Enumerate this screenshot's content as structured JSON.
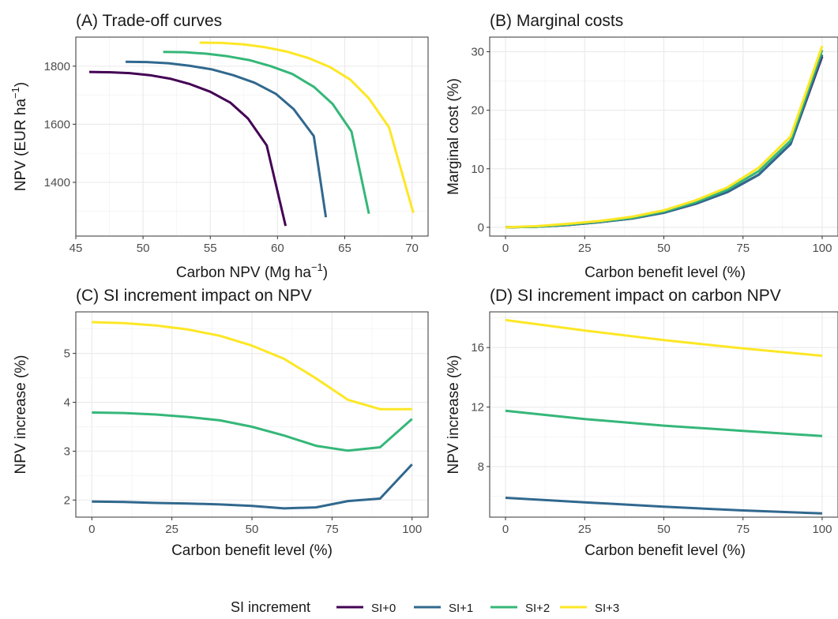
{
  "series_colors": {
    "SI+0": "#440154",
    "SI+1": "#31688e",
    "SI+2": "#35b779",
    "SI+3": "#fde725"
  },
  "legend": {
    "title": "SI increment",
    "entries": [
      "SI+0",
      "SI+1",
      "SI+2",
      "SI+3"
    ]
  },
  "chart_data": [
    {
      "id": "A",
      "type": "line",
      "title": "(A) Trade-off curves",
      "xlabel": "Carbon NPV (Mg ha",
      "xlabel_sup": "−1",
      "xlabel_end": ")",
      "ylabel": "NPV (EUR ha",
      "ylabel_sup": "−1",
      "ylabel_end": ")",
      "xlim": [
        45,
        71.2
      ],
      "ylim": [
        1215,
        1900
      ],
      "xticks": [
        45,
        50,
        55,
        60,
        65,
        70
      ],
      "yticks": [
        1400,
        1600,
        1800
      ],
      "grid": true,
      "series": [
        {
          "name": "SI+0",
          "points": [
            [
              46.0,
              1780
            ],
            [
              47.5,
              1779
            ],
            [
              49.0,
              1776
            ],
            [
              50.5,
              1769
            ],
            [
              52.0,
              1757
            ],
            [
              53.5,
              1738
            ],
            [
              55.0,
              1712
            ],
            [
              56.5,
              1674
            ],
            [
              57.8,
              1620
            ],
            [
              59.2,
              1527
            ],
            [
              60.6,
              1250
            ]
          ]
        },
        {
          "name": "SI+1",
          "points": [
            [
              48.7,
              1815
            ],
            [
              50.3,
              1814
            ],
            [
              51.9,
              1810
            ],
            [
              53.5,
              1801
            ],
            [
              55.1,
              1789
            ],
            [
              56.7,
              1769
            ],
            [
              58.3,
              1743
            ],
            [
              59.9,
              1704
            ],
            [
              61.2,
              1652
            ],
            [
              62.7,
              1559
            ],
            [
              63.6,
              1280
            ]
          ]
        },
        {
          "name": "SI+2",
          "points": [
            [
              51.5,
              1849
            ],
            [
              53.1,
              1848
            ],
            [
              54.7,
              1843
            ],
            [
              56.3,
              1834
            ],
            [
              57.9,
              1821
            ],
            [
              59.5,
              1800
            ],
            [
              61.1,
              1773
            ],
            [
              62.7,
              1729
            ],
            [
              64.1,
              1670
            ],
            [
              65.5,
              1575
            ],
            [
              66.8,
              1292
            ]
          ]
        },
        {
          "name": "SI+3",
          "points": [
            [
              54.2,
              1881
            ],
            [
              55.9,
              1880
            ],
            [
              57.5,
              1875
            ],
            [
              59.1,
              1865
            ],
            [
              60.7,
              1850
            ],
            [
              62.3,
              1828
            ],
            [
              63.9,
              1797
            ],
            [
              65.4,
              1754
            ],
            [
              66.8,
              1689
            ],
            [
              68.3,
              1589
            ],
            [
              70.1,
              1295
            ]
          ]
        }
      ]
    },
    {
      "id": "B",
      "type": "line",
      "title": "(B) Marginal costs",
      "xlabel": "Carbon benefit level (%)",
      "ylabel": "Marginal cost (%)",
      "xlim": [
        -5,
        105
      ],
      "ylim": [
        -1.5,
        32.5
      ],
      "xticks": [
        0,
        25,
        50,
        75,
        100
      ],
      "yticks": [
        0,
        10,
        20,
        30
      ],
      "grid": true,
      "x": [
        0,
        10,
        20,
        30,
        40,
        50,
        60,
        70,
        80,
        90,
        100
      ],
      "series": [
        {
          "name": "SI+0",
          "values": [
            0,
            0.1,
            0.4,
            0.9,
            1.5,
            2.5,
            4.0,
            6.0,
            9.0,
            14.2,
            29.2
          ]
        },
        {
          "name": "SI+1",
          "values": [
            0,
            0.1,
            0.4,
            0.9,
            1.5,
            2.5,
            4.0,
            6.0,
            9.0,
            14.2,
            29.5
          ]
        },
        {
          "name": "SI+2",
          "values": [
            0,
            0.1,
            0.5,
            1.0,
            1.6,
            2.7,
            4.3,
            6.4,
            9.6,
            14.8,
            30.3
          ]
        },
        {
          "name": "SI+3",
          "values": [
            0,
            0.2,
            0.6,
            1.1,
            1.8,
            2.9,
            4.6,
            6.8,
            10.2,
            15.5,
            31.0
          ]
        }
      ]
    },
    {
      "id": "C",
      "type": "line",
      "title": "(C) SI increment impact on NPV",
      "xlabel": "Carbon benefit level (%)",
      "ylabel": "NPV increase (%)",
      "xlim": [
        -5,
        105
      ],
      "ylim": [
        1.65,
        5.85
      ],
      "xticks": [
        0,
        25,
        50,
        75,
        100
      ],
      "yticks": [
        2,
        3,
        4,
        5
      ],
      "grid": true,
      "x": [
        0,
        10,
        20,
        30,
        40,
        50,
        60,
        70,
        80,
        90,
        100
      ],
      "series": [
        {
          "name": "SI+1",
          "values": [
            1.97,
            1.96,
            1.94,
            1.93,
            1.91,
            1.88,
            1.83,
            1.85,
            1.98,
            2.03,
            2.73
          ]
        },
        {
          "name": "SI+2",
          "values": [
            3.79,
            3.78,
            3.75,
            3.7,
            3.63,
            3.5,
            3.32,
            3.11,
            3.01,
            3.08,
            3.66
          ]
        },
        {
          "name": "SI+3",
          "values": [
            5.64,
            5.62,
            5.57,
            5.49,
            5.36,
            5.16,
            4.89,
            4.49,
            4.05,
            3.86,
            3.86
          ]
        }
      ]
    },
    {
      "id": "D",
      "type": "line",
      "title": "(D) SI increment impact on carbon NPV",
      "xlabel": "Carbon benefit level (%)",
      "ylabel": "NPV increase (%)",
      "xlim": [
        -5,
        105
      ],
      "ylim": [
        4.6,
        18.4
      ],
      "xticks": [
        0,
        25,
        50,
        75,
        100
      ],
      "yticks": [
        8,
        12,
        16
      ],
      "grid": true,
      "x": [
        0,
        25,
        50,
        75,
        100
      ],
      "series": [
        {
          "name": "SI+1",
          "values": [
            5.9,
            5.6,
            5.3,
            5.05,
            4.85
          ]
        },
        {
          "name": "SI+2",
          "values": [
            11.75,
            11.2,
            10.75,
            10.4,
            10.05
          ]
        },
        {
          "name": "SI+3",
          "values": [
            17.85,
            17.15,
            16.5,
            15.95,
            15.45
          ]
        }
      ]
    }
  ]
}
